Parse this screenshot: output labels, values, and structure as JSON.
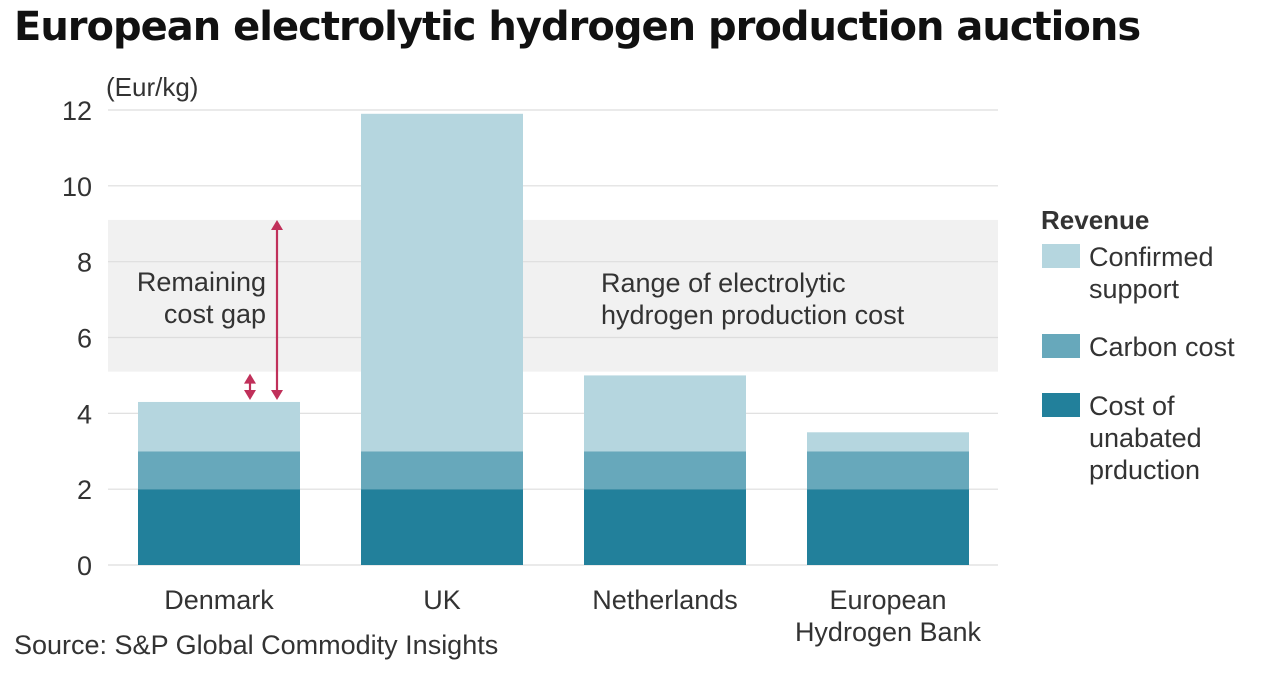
{
  "chart_data": {
    "type": "bar",
    "stacked": true,
    "title": "European electrolytic hydrogen production auctions",
    "ylabel": "(Eur/kg)",
    "ylim": [
      0,
      12
    ],
    "yticks": [
      0,
      2,
      4,
      6,
      8,
      10,
      12
    ],
    "grid": true,
    "categories": [
      "Denmark",
      "UK",
      "Netherlands",
      "European Hydrogen Bank"
    ],
    "category_labels": [
      [
        "Denmark"
      ],
      [
        "UK"
      ],
      [
        "Netherlands"
      ],
      [
        "European",
        "Hydrogen Bank"
      ]
    ],
    "series": [
      {
        "name": "Cost of unabated prduction",
        "legend_lines": [
          "Cost of",
          "unabated",
          "prduction"
        ],
        "color": "#22809b",
        "values": [
          2,
          2,
          2,
          2
        ]
      },
      {
        "name": "Carbon cost",
        "legend_lines": [
          "Carbon cost"
        ],
        "color": "#67a8bb",
        "values": [
          1,
          1,
          1,
          1
        ]
      },
      {
        "name": "Confirmed support",
        "legend_lines": [
          "Confirmed",
          "support"
        ],
        "color": "#b5d6df",
        "values": [
          1.3,
          8.9,
          2,
          0.5
        ]
      }
    ],
    "legend_title": "Revenue",
    "legend_position": "right",
    "legend_order": [
      2,
      1,
      0
    ],
    "range_band": {
      "from": 5.1,
      "to": 9.1,
      "color": "#f1f1f1",
      "lines": [
        "Range of electrolytic",
        "hydrogen production cost"
      ]
    },
    "annotation": {
      "category": "Denmark",
      "lines": [
        "Remaining",
        "cost gap"
      ],
      "color": "#c0305a",
      "gap_from": 4.3,
      "gap_to_low": 5.1,
      "gap_to_high": 9.1
    }
  },
  "source": "Source: S&P Global Commodity Insights"
}
